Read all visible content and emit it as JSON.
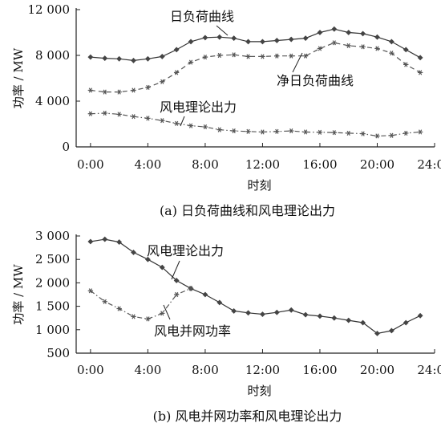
{
  "chart_data": [
    {
      "type": "line",
      "caption": "(a)  日负荷曲线和风电理论出力",
      "xlabel": "时刻",
      "ylabel": "功率 / MW",
      "xlim": [
        -1,
        24
      ],
      "ylim": [
        0,
        12000
      ],
      "xticks": [
        0,
        4,
        8,
        12,
        16,
        20,
        24
      ],
      "xtick_labels": [
        "0:00",
        "4:00",
        "8:00",
        "12:00",
        "16:00",
        "20:00",
        "24:00"
      ],
      "yticks": [
        0,
        4000,
        8000,
        12000
      ],
      "ytick_labels": [
        "0",
        "4 000",
        "8 000",
        "12 000"
      ],
      "grid": false,
      "x": [
        0,
        1,
        2,
        3,
        4,
        5,
        6,
        7,
        8,
        9,
        10,
        11,
        12,
        13,
        14,
        15,
        16,
        17,
        18,
        19,
        20,
        21,
        22,
        23
      ],
      "series": [
        {
          "name": "日负荷曲线",
          "style": "solid-diamond",
          "values": [
            7850,
            7750,
            7700,
            7550,
            7700,
            7900,
            8500,
            9200,
            9550,
            9600,
            9500,
            9200,
            9200,
            9300,
            9400,
            9500,
            10000,
            10300,
            10000,
            9900,
            9600,
            9200,
            8500,
            7800
          ]
        },
        {
          "name": "净日负荷曲线",
          "style": "dash-star",
          "values": [
            4950,
            4800,
            4800,
            4950,
            5200,
            5700,
            6500,
            7400,
            7850,
            8000,
            8050,
            7900,
            7900,
            7950,
            7950,
            7950,
            8600,
            9100,
            8850,
            8750,
            8600,
            8200,
            7200,
            6500
          ]
        },
        {
          "name": "风电理论出力",
          "style": "dashdot-star",
          "values": [
            2900,
            2950,
            2850,
            2650,
            2500,
            2300,
            2050,
            1850,
            1750,
            1500,
            1400,
            1350,
            1300,
            1350,
            1400,
            1300,
            1280,
            1250,
            1200,
            1150,
            950,
            1000,
            1200,
            1300
          ]
        }
      ]
    },
    {
      "type": "line",
      "caption": "(b)  风电并网功率和风电理论出力",
      "xlabel": "时刻",
      "ylabel": "功率 / MW",
      "xlim": [
        -1,
        24
      ],
      "ylim": [
        500,
        3000
      ],
      "xticks": [
        0,
        4,
        8,
        12,
        16,
        20,
        24
      ],
      "xtick_labels": [
        "0:00",
        "4:00",
        "8:00",
        "12:00",
        "16:00",
        "20:00",
        "24:00"
      ],
      "yticks": [
        500,
        1000,
        1500,
        2000,
        2500,
        3000
      ],
      "ytick_labels": [
        "500",
        "1 000",
        "1 500",
        "2 000",
        "2 500",
        "3 000"
      ],
      "grid": false,
      "series": [
        {
          "name": "风电理论出力",
          "style": "solid-diamond",
          "x": [
            0,
            1,
            2,
            3,
            4,
            5,
            6,
            7,
            8,
            9,
            10,
            11,
            12,
            13,
            14,
            15,
            16,
            17,
            18,
            19,
            20,
            21,
            22,
            23
          ],
          "values": [
            2880,
            2930,
            2870,
            2650,
            2500,
            2330,
            2050,
            1880,
            1750,
            1580,
            1400,
            1360,
            1330,
            1370,
            1420,
            1320,
            1290,
            1250,
            1200,
            1150,
            920,
            980,
            1150,
            1300
          ]
        },
        {
          "name": "风电并网功率",
          "style": "dashdot-star",
          "x": [
            0,
            1,
            2,
            3,
            4,
            5,
            6,
            7
          ],
          "values": [
            1830,
            1600,
            1450,
            1280,
            1230,
            1350,
            1750,
            1880
          ]
        }
      ]
    }
  ],
  "annotations_a": [
    {
      "text": "日负荷曲线",
      "series": 0
    },
    {
      "text": "净日负荷曲线",
      "series": 1
    },
    {
      "text": "风电理论出力",
      "series": 2
    }
  ],
  "annotations_b": [
    {
      "text": "风电理论出力",
      "series": 0
    },
    {
      "text": "风电并网功率",
      "series": 1
    }
  ]
}
